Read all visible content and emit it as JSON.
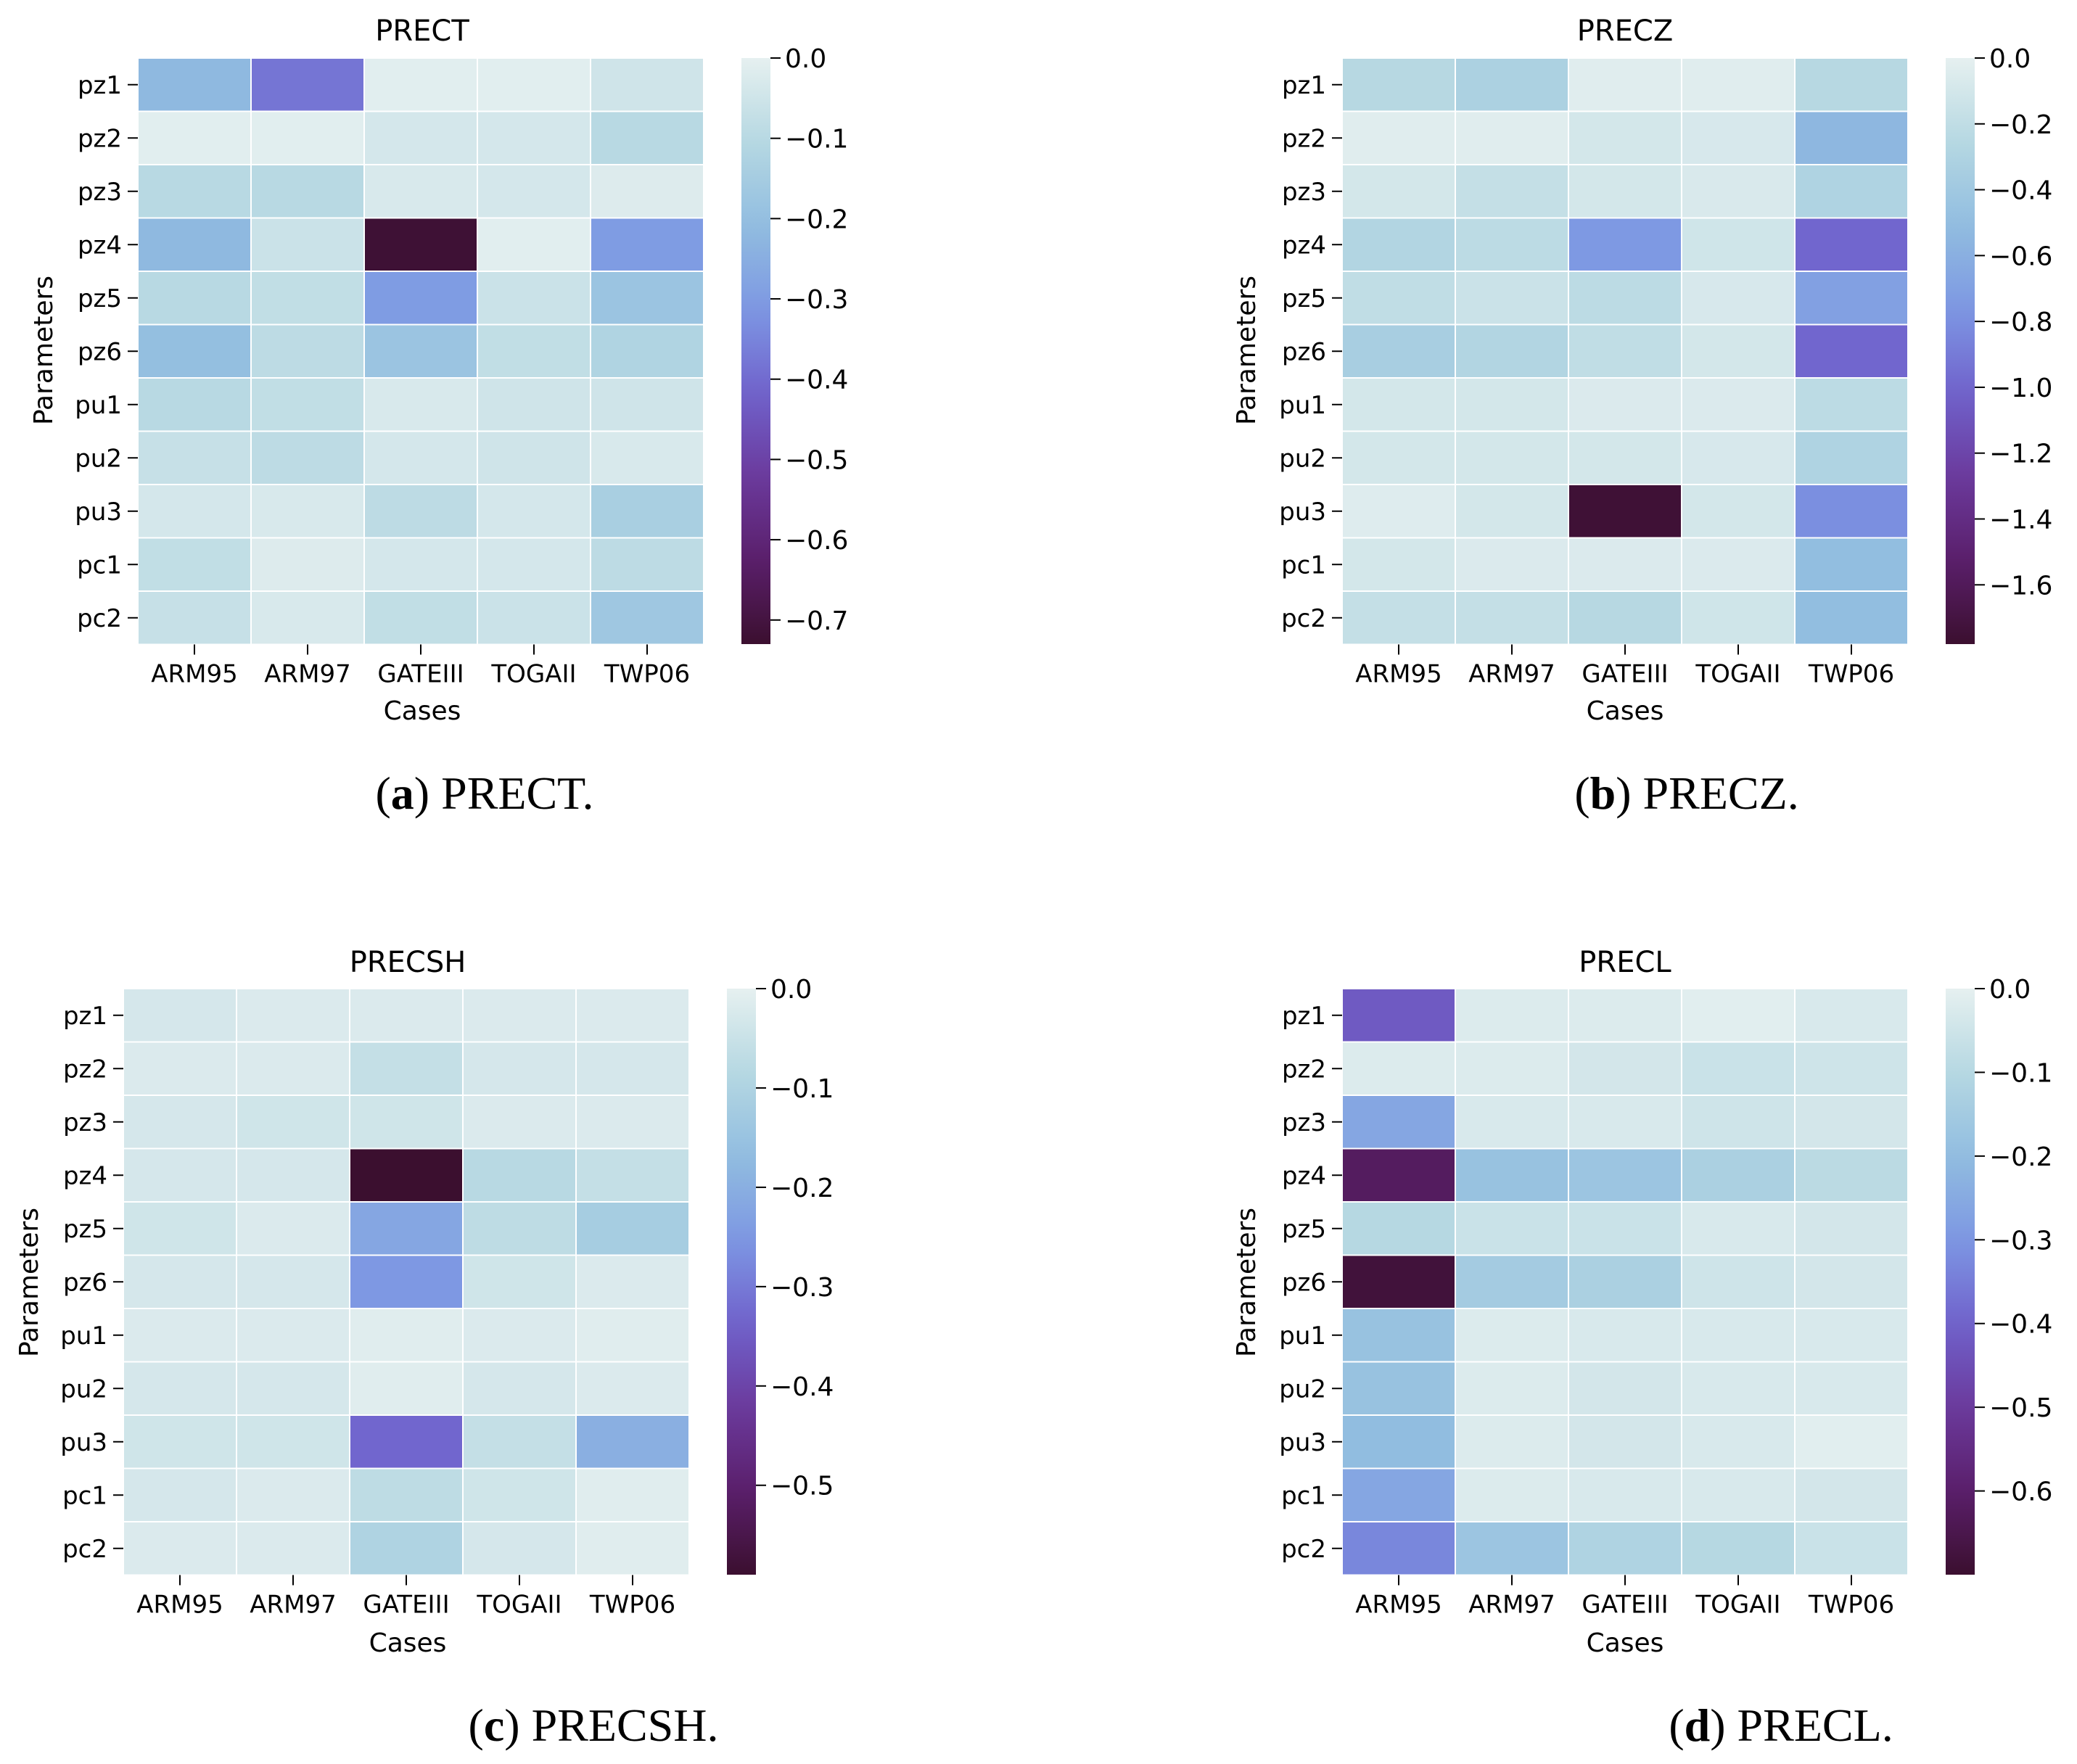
{
  "chart_data": [
    {
      "type": "heatmap",
      "id": "a",
      "title": "PRECT",
      "caption_letter": "a",
      "caption_text": "PRECT.",
      "xlabel": "Cases",
      "ylabel": "Parameters",
      "columns": [
        "ARM95",
        "ARM97",
        "GATEIII",
        "TOGAII",
        "TWP06"
      ],
      "rows": [
        "pz1",
        "pz2",
        "pz3",
        "pz4",
        "pz5",
        "pz6",
        "pu1",
        "pu2",
        "pu3",
        "pc1",
        "pc2"
      ],
      "values": [
        [
          -0.22,
          -0.38,
          -0.01,
          -0.01,
          -0.05
        ],
        [
          -0.01,
          -0.01,
          -0.04,
          -0.04,
          -0.1
        ],
        [
          -0.1,
          -0.1,
          -0.03,
          -0.04,
          -0.02
        ],
        [
          -0.22,
          -0.06,
          -0.72,
          -0.01,
          -0.3
        ],
        [
          -0.1,
          -0.08,
          -0.3,
          -0.06,
          -0.18
        ],
        [
          -0.2,
          -0.09,
          -0.18,
          -0.08,
          -0.12
        ],
        [
          -0.1,
          -0.08,
          -0.03,
          -0.05,
          -0.05
        ],
        [
          -0.07,
          -0.09,
          -0.04,
          -0.05,
          -0.03
        ],
        [
          -0.04,
          -0.03,
          -0.09,
          -0.04,
          -0.14
        ],
        [
          -0.08,
          -0.02,
          -0.04,
          -0.04,
          -0.09
        ],
        [
          -0.07,
          -0.03,
          -0.08,
          -0.06,
          -0.17
        ]
      ],
      "vmin": -0.73,
      "vmax": 0.0,
      "colorbar_ticks": [
        0.0,
        -0.1,
        -0.2,
        -0.3,
        -0.4,
        -0.5,
        -0.6,
        -0.7
      ],
      "colorbar_labels": [
        "0.0",
        "−0.1",
        "−0.2",
        "−0.3",
        "−0.4",
        "−0.5",
        "−0.6",
        "−0.7"
      ]
    },
    {
      "type": "heatmap",
      "id": "b",
      "title": "PRECZ",
      "caption_letter": "b",
      "caption_text": "PRECZ.",
      "xlabel": "Cases",
      "ylabel": "Parameters",
      "columns": [
        "ARM95",
        "ARM97",
        "GATEIII",
        "TOGAII",
        "TWP06"
      ],
      "rows": [
        "pz1",
        "pz2",
        "pz3",
        "pz4",
        "pz5",
        "pz6",
        "pu1",
        "pu2",
        "pu3",
        "pc1",
        "pc2"
      ],
      "values": [
        [
          -0.25,
          -0.32,
          -0.03,
          -0.03,
          -0.25
        ],
        [
          -0.03,
          -0.03,
          -0.1,
          -0.08,
          -0.55
        ],
        [
          -0.1,
          -0.18,
          -0.1,
          -0.07,
          -0.3
        ],
        [
          -0.28,
          -0.22,
          -0.75,
          -0.12,
          -1.0
        ],
        [
          -0.2,
          -0.15,
          -0.22,
          -0.08,
          -0.7
        ],
        [
          -0.35,
          -0.28,
          -0.2,
          -0.1,
          -1.0
        ],
        [
          -0.1,
          -0.1,
          -0.06,
          -0.06,
          -0.22
        ],
        [
          -0.1,
          -0.1,
          -0.1,
          -0.08,
          -0.3
        ],
        [
          -0.04,
          -0.1,
          -1.75,
          -0.1,
          -0.8
        ],
        [
          -0.1,
          -0.06,
          -0.06,
          -0.06,
          -0.5
        ],
        [
          -0.18,
          -0.18,
          -0.25,
          -0.12,
          -0.5
        ]
      ],
      "vmin": -1.78,
      "vmax": 0.0,
      "colorbar_ticks": [
        0.0,
        -0.2,
        -0.4,
        -0.6,
        -0.8,
        -1.0,
        -1.2,
        -1.4,
        -1.6
      ],
      "colorbar_labels": [
        "0.0",
        "−0.2",
        "−0.4",
        "−0.6",
        "−0.8",
        "−1.0",
        "−1.2",
        "−1.4",
        "−1.6"
      ]
    },
    {
      "type": "heatmap",
      "id": "c",
      "title": "PRECSH",
      "caption_letter": "c",
      "caption_text": "PRECSH.",
      "xlabel": "Cases",
      "ylabel": "Parameters",
      "columns": [
        "ARM95",
        "ARM97",
        "GATEIII",
        "TOGAII",
        "TWP06"
      ],
      "rows": [
        "pz1",
        "pz2",
        "pz3",
        "pz4",
        "pz5",
        "pz6",
        "pu1",
        "pu2",
        "pu3",
        "pc1",
        "pc2"
      ],
      "values": [
        [
          -0.03,
          -0.02,
          -0.02,
          -0.02,
          -0.02
        ],
        [
          -0.02,
          -0.02,
          -0.06,
          -0.03,
          -0.03
        ],
        [
          -0.03,
          -0.04,
          -0.04,
          -0.02,
          -0.02
        ],
        [
          -0.03,
          -0.03,
          -0.59,
          -0.08,
          -0.06
        ],
        [
          -0.04,
          -0.02,
          -0.22,
          -0.07,
          -0.12
        ],
        [
          -0.03,
          -0.03,
          -0.25,
          -0.04,
          -0.02
        ],
        [
          -0.02,
          -0.02,
          -0.01,
          -0.02,
          -0.01
        ],
        [
          -0.03,
          -0.03,
          -0.01,
          -0.03,
          -0.02
        ],
        [
          -0.04,
          -0.04,
          -0.33,
          -0.06,
          -0.2
        ],
        [
          -0.03,
          -0.02,
          -0.07,
          -0.04,
          -0.01
        ],
        [
          -0.02,
          -0.02,
          -0.1,
          -0.03,
          -0.01
        ]
      ],
      "vmin": -0.59,
      "vmax": 0.0,
      "colorbar_ticks": [
        0.0,
        -0.1,
        -0.2,
        -0.3,
        -0.4,
        -0.5
      ],
      "colorbar_labels": [
        "0.0",
        "−0.1",
        "−0.2",
        "−0.3",
        "−0.4",
        "−0.5"
      ]
    },
    {
      "type": "heatmap",
      "id": "d",
      "title": "PRECL",
      "caption_letter": "d",
      "caption_text": "PRECL.",
      "xlabel": "Cases",
      "ylabel": "Parameters",
      "columns": [
        "ARM95",
        "ARM97",
        "GATEIII",
        "TOGAII",
        "TWP06"
      ],
      "rows": [
        "pz1",
        "pz2",
        "pz3",
        "pz4",
        "pz5",
        "pz6",
        "pu1",
        "pu2",
        "pu3",
        "pc1",
        "pc2"
      ],
      "values": [
        [
          -0.42,
          -0.02,
          -0.02,
          -0.01,
          -0.03
        ],
        [
          -0.02,
          -0.02,
          -0.04,
          -0.06,
          -0.05
        ],
        [
          -0.26,
          -0.03,
          -0.03,
          -0.05,
          -0.04
        ],
        [
          -0.62,
          -0.18,
          -0.17,
          -0.13,
          -0.09
        ],
        [
          -0.1,
          -0.06,
          -0.06,
          -0.03,
          -0.04
        ],
        [
          -0.68,
          -0.15,
          -0.13,
          -0.05,
          -0.04
        ],
        [
          -0.18,
          -0.02,
          -0.03,
          -0.03,
          -0.03
        ],
        [
          -0.18,
          -0.02,
          -0.04,
          -0.03,
          -0.03
        ],
        [
          -0.2,
          -0.02,
          -0.04,
          -0.03,
          -0.01
        ],
        [
          -0.26,
          -0.02,
          -0.03,
          -0.03,
          -0.04
        ],
        [
          -0.33,
          -0.17,
          -0.12,
          -0.1,
          -0.06
        ]
      ],
      "vmin": -0.7,
      "vmax": 0.0,
      "colorbar_ticks": [
        0.0,
        -0.1,
        -0.2,
        -0.3,
        -0.4,
        -0.5,
        -0.6
      ],
      "colorbar_labels": [
        "0.0",
        "−0.1",
        "−0.2",
        "−0.3",
        "−0.4",
        "−0.5",
        "−0.6"
      ]
    }
  ],
  "colormap_hex": [
    "#e6f0f0",
    "#b6d8e2",
    "#91bde0",
    "#7d97e3",
    "#7062cc",
    "#6b3a9c",
    "#5a1f6b",
    "#3b0f2f"
  ]
}
